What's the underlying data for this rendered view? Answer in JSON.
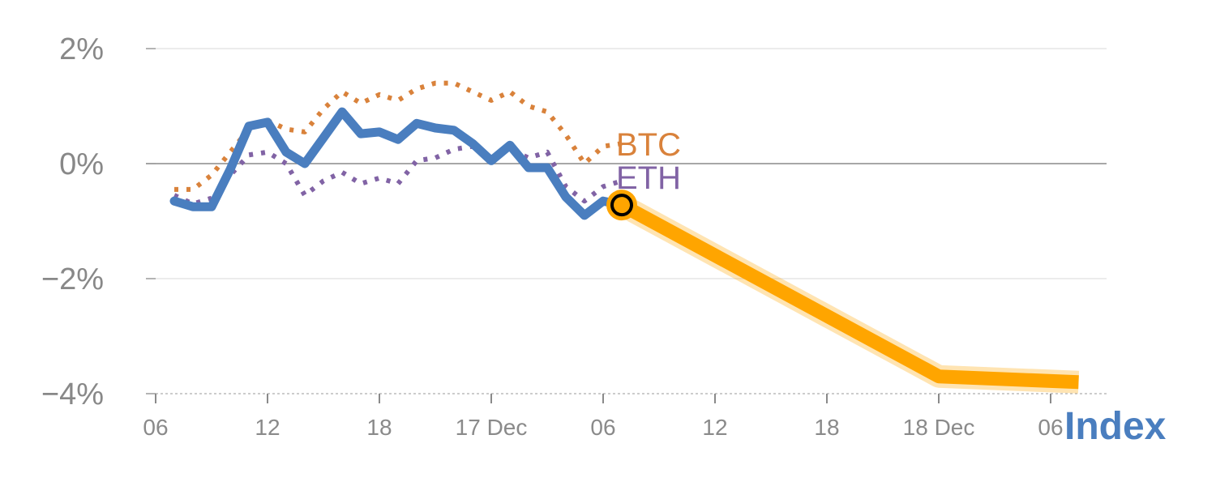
{
  "chart_data": {
    "type": "line",
    "x_unit": "hours",
    "x_ticks": [
      {
        "x": 6,
        "label": "06"
      },
      {
        "x": 12,
        "label": "12"
      },
      {
        "x": 18,
        "label": "18"
      },
      {
        "x": 24,
        "label": "17 Dec"
      },
      {
        "x": 30,
        "label": "06"
      },
      {
        "x": 36,
        "label": "12"
      },
      {
        "x": 42,
        "label": "18"
      },
      {
        "x": 48,
        "label": "18 Dec"
      },
      {
        "x": 54,
        "label": "06"
      }
    ],
    "y_ticks": [
      {
        "y": 2,
        "label": "2%"
      },
      {
        "y": 0,
        "label": "0%"
      },
      {
        "y": -2,
        "label": "−2%"
      },
      {
        "y": -4,
        "label": "−4%"
      }
    ],
    "xlim": [
      5.5,
      56.8
    ],
    "ylim": [
      -4,
      2.3
    ],
    "series": [
      {
        "name": "BTC",
        "color": "#d9823b",
        "style": "dotted",
        "x": [
          7,
          8,
          9,
          10,
          11,
          12,
          13,
          14,
          15,
          16,
          17,
          18,
          19,
          20,
          21,
          22,
          23,
          24,
          25,
          26,
          27,
          28,
          29,
          30,
          31
        ],
        "y": [
          -0.45,
          -0.45,
          -0.2,
          0.2,
          0.6,
          0.75,
          0.6,
          0.55,
          0.95,
          1.25,
          1.05,
          1.2,
          1.1,
          1.3,
          1.4,
          1.4,
          1.25,
          1.1,
          1.25,
          1.0,
          0.9,
          0.5,
          0.0,
          0.3,
          0.35
        ]
      },
      {
        "name": "ETH",
        "color": "#8163a5",
        "style": "dotted",
        "x": [
          7,
          8,
          9,
          10,
          11,
          12,
          13,
          14,
          15,
          16,
          17,
          18,
          19,
          20,
          21,
          22,
          23,
          24,
          25,
          26,
          27,
          28,
          29,
          30,
          31
        ],
        "y": [
          -0.55,
          -0.7,
          -0.6,
          -0.2,
          0.15,
          0.2,
          0.0,
          -0.55,
          -0.3,
          -0.15,
          -0.35,
          -0.25,
          -0.35,
          0.05,
          0.1,
          0.25,
          0.3,
          0.1,
          0.25,
          0.1,
          0.2,
          -0.4,
          -0.65,
          -0.4,
          -0.3
        ]
      },
      {
        "name": "Index",
        "color": "#4a7ebf",
        "style": "solid",
        "x": [
          7,
          8,
          9,
          10,
          11,
          12,
          13,
          14,
          15,
          16,
          17,
          18,
          19,
          20,
          21,
          22,
          23,
          24,
          25,
          26,
          27,
          28,
          29,
          30,
          31
        ],
        "y": [
          -0.65,
          -0.75,
          -0.75,
          -0.1,
          0.65,
          0.72,
          0.2,
          0.0,
          0.45,
          0.9,
          0.52,
          0.55,
          0.42,
          0.7,
          0.62,
          0.58,
          0.35,
          0.05,
          0.32,
          -0.07,
          -0.07,
          -0.58,
          -0.9,
          -0.65,
          -0.72
        ]
      }
    ],
    "forecast": {
      "color": "#ffa500",
      "x": [
        31,
        48,
        55.5
      ],
      "y": [
        -0.72,
        -3.7,
        -3.8
      ]
    },
    "series_labels": {
      "btc": "BTC",
      "eth": "ETH",
      "index": "Index"
    },
    "grid": true
  }
}
